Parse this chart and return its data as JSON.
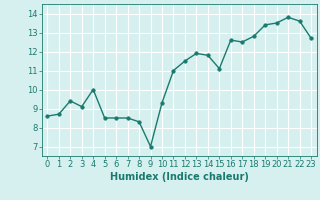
{
  "x": [
    0,
    1,
    2,
    3,
    4,
    5,
    6,
    7,
    8,
    9,
    10,
    11,
    12,
    13,
    14,
    15,
    16,
    17,
    18,
    19,
    20,
    21,
    22,
    23
  ],
  "y": [
    8.6,
    8.7,
    9.4,
    9.1,
    10.0,
    8.5,
    8.5,
    8.5,
    8.3,
    7.0,
    9.3,
    11.0,
    11.5,
    11.9,
    11.8,
    11.1,
    12.6,
    12.5,
    12.8,
    13.4,
    13.5,
    13.8,
    13.6,
    12.7
  ],
  "xlabel": "Humidex (Indice chaleur)",
  "ylim": [
    6.5,
    14.5
  ],
  "xlim": [
    -0.5,
    23.5
  ],
  "yticks": [
    7,
    8,
    9,
    10,
    11,
    12,
    13,
    14
  ],
  "xticks": [
    0,
    1,
    2,
    3,
    4,
    5,
    6,
    7,
    8,
    9,
    10,
    11,
    12,
    13,
    14,
    15,
    16,
    17,
    18,
    19,
    20,
    21,
    22,
    23
  ],
  "line_color": "#1a7a6e",
  "marker_color": "#1a7a6e",
  "bg_color": "#d6f0f0",
  "grid_color": "#ffffff",
  "tick_color": "#1a7a6e",
  "label_color": "#1a7a6e",
  "font_size_xlabel": 7,
  "font_size_ticks": 6,
  "line_width": 1.0,
  "marker_size": 2.5
}
